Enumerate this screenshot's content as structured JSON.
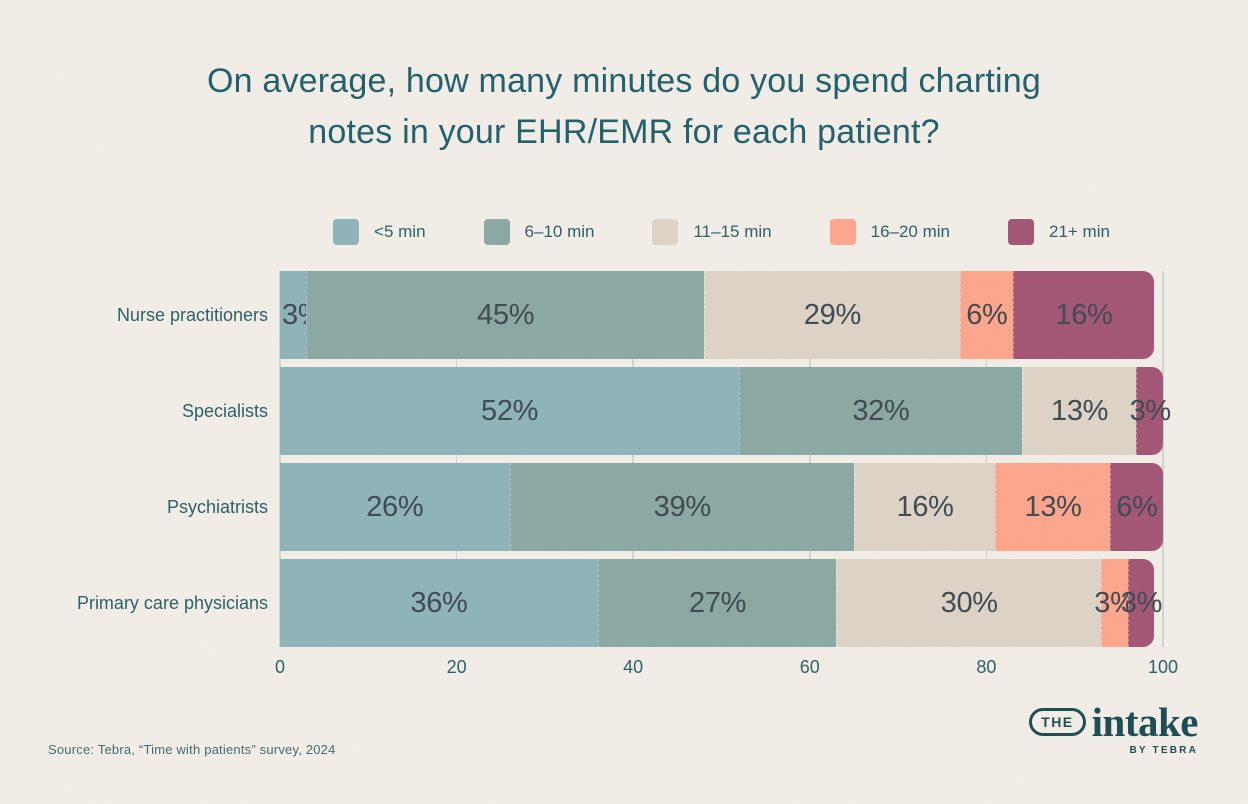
{
  "title": {
    "line1": "On average, how many minutes do you spend charting",
    "line2": "notes in your EHR/EMR for each patient?"
  },
  "colors": {
    "bg": "#f2eee7",
    "title": "#1f5f6b",
    "label": "#2b5f66",
    "pct": "#3e4a50",
    "grid": "#c9d7d3",
    "source": "#44696f",
    "logo": "#1c4c50"
  },
  "chart_data": {
    "type": "bar",
    "stacked": true,
    "orientation": "horizontal",
    "title": "On average, how many minutes do you spend charting notes in your EHR/EMR for each patient?",
    "categories": [
      "Nurse practitioners",
      "Specialists",
      "Psychiatrists",
      "Primary care physicians"
    ],
    "series": [
      {
        "name": "<5 min",
        "color": "#8db4ba",
        "values": [
          3,
          52,
          26,
          36
        ]
      },
      {
        "name": "6–10 min",
        "color": "#8ba8a2",
        "values": [
          45,
          32,
          39,
          27
        ]
      },
      {
        "name": "11–15 min",
        "color": "#ded3c6",
        "values": [
          29,
          13,
          16,
          30
        ]
      },
      {
        "name": "16–20 min",
        "color": "#fda58c",
        "values": [
          6,
          0,
          13,
          3
        ]
      },
      {
        "name": "21+ min",
        "color": "#a35575",
        "values": [
          16,
          3,
          6,
          3
        ]
      }
    ],
    "xlim": [
      0,
      100
    ],
    "xticks": [
      0,
      20,
      40,
      60,
      80,
      100
    ],
    "value_suffix": "%",
    "legend_position": "top",
    "grid": true
  },
  "footer": {
    "source": "Source: Tebra, “Time with patients” survey, 2024"
  },
  "logo": {
    "the": "THE",
    "intake": "intake",
    "byline": "BY TEBRA"
  }
}
